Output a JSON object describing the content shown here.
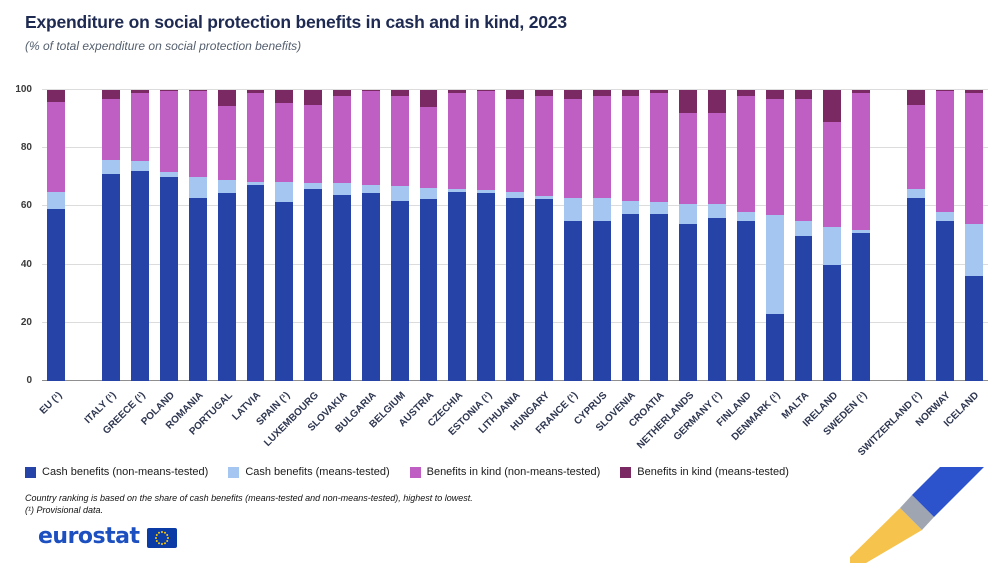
{
  "header": {
    "title": "Expenditure on social protection benefits in cash and in kind, 2023",
    "subtitle": "(% of total expenditure on social protection benefits)"
  },
  "chart_data": {
    "type": "bar",
    "stacking": "percent",
    "title": "Expenditure on social protection benefits in cash and in kind, 2023",
    "subtitle": "(% of total expenditure on social protection benefits)",
    "xlabel": "",
    "ylabel": "",
    "ylim": [
      0,
      100
    ],
    "yticks": [
      0,
      20,
      40,
      60,
      80,
      100
    ],
    "grid": "horizontal",
    "legend_position": "bottom",
    "series_names": [
      "Cash benefits (non-means-tested)",
      "Cash benefits (means-tested)",
      "Benefits in kind (non-means-tested)",
      "Benefits in kind (means-tested)"
    ],
    "series_colors": [
      "#2644A7",
      "#A4C6F0",
      "#BF5FC4",
      "#7A2963"
    ],
    "groups": [
      {
        "name": "eu-aggregate",
        "categories": [
          "EU (¹)"
        ],
        "values": [
          [
            59,
            6,
            31,
            4
          ]
        ]
      },
      {
        "name": "eu-members",
        "categories": [
          "ITALY (¹)",
          "GREECE (¹)",
          "POLAND",
          "ROMANIA",
          "PORTUGAL",
          "LATVIA",
          "SPAIN (¹)",
          "LUXEMBOURG",
          "SLOVAKIA",
          "BULGARIA",
          "BELGIUM",
          "AUSTRIA",
          "CZECHIA",
          "ESTONIA (¹)",
          "LITHUANIA",
          "HUNGARY",
          "FRANCE (¹)",
          "CYPRUS",
          "SLOVENIA",
          "CROATIA",
          "NETHERLANDS",
          "GERMANY (¹)",
          "FINLAND",
          "DENMARK (¹)",
          "MALTA",
          "IRELAND",
          "SWEDEN (¹)"
        ],
        "values": [
          [
            71,
            5,
            21,
            3
          ],
          [
            72,
            3.5,
            23.5,
            1
          ],
          [
            70,
            2,
            27.5,
            0.5
          ],
          [
            63,
            7,
            29.5,
            0.5
          ],
          [
            64.5,
            4.5,
            25.5,
            5.5
          ],
          [
            67.5,
            1,
            30.5,
            1
          ],
          [
            61.5,
            7,
            27,
            4.5
          ],
          [
            66,
            2,
            27,
            5
          ],
          [
            64,
            4,
            30,
            2
          ],
          [
            64.5,
            3,
            32,
            0.5
          ],
          [
            62,
            5,
            31,
            2
          ],
          [
            62.5,
            4,
            27.5,
            6
          ],
          [
            65,
            1,
            33,
            1
          ],
          [
            64.5,
            1,
            34,
            0.5
          ],
          [
            63,
            2,
            32,
            3
          ],
          [
            62.5,
            1,
            34.5,
            2
          ],
          [
            55,
            8,
            34,
            3
          ],
          [
            55,
            8,
            35,
            2
          ],
          [
            57.5,
            4.5,
            36,
            2
          ],
          [
            57.5,
            4,
            37.5,
            1
          ],
          [
            54,
            7,
            31,
            8
          ],
          [
            56,
            5,
            31,
            8
          ],
          [
            55,
            3,
            40,
            2
          ],
          [
            23,
            34,
            40,
            3
          ],
          [
            50,
            5,
            42,
            3
          ],
          [
            40,
            13,
            36,
            11
          ],
          [
            51,
            1,
            47,
            1
          ]
        ]
      },
      {
        "name": "efta",
        "categories": [
          "SWITZERLAND (¹)",
          "NORWAY",
          "ICELAND"
        ],
        "values": [
          [
            63,
            3,
            29,
            5
          ],
          [
            55,
            3,
            41.5,
            0.5
          ],
          [
            36,
            18,
            45,
            1
          ]
        ]
      }
    ]
  },
  "footnotes": {
    "line1": "Country ranking is based on the share of cash benefits (means-tested and non-means-tested), highest to lowest.",
    "line2": "(¹) Provisional data."
  },
  "footer": {
    "logo_text": "eurostat"
  },
  "colors": {
    "title": "#1e2a52",
    "logo_blue": "#1c4fc0",
    "flag_blue": "#0b3ba5",
    "flag_star_yellow": "#ffcc00",
    "ribbon_yellow": "#f6c34c",
    "ribbon_gray": "#a0a6b1",
    "ribbon_blue": "#2c52cc"
  }
}
